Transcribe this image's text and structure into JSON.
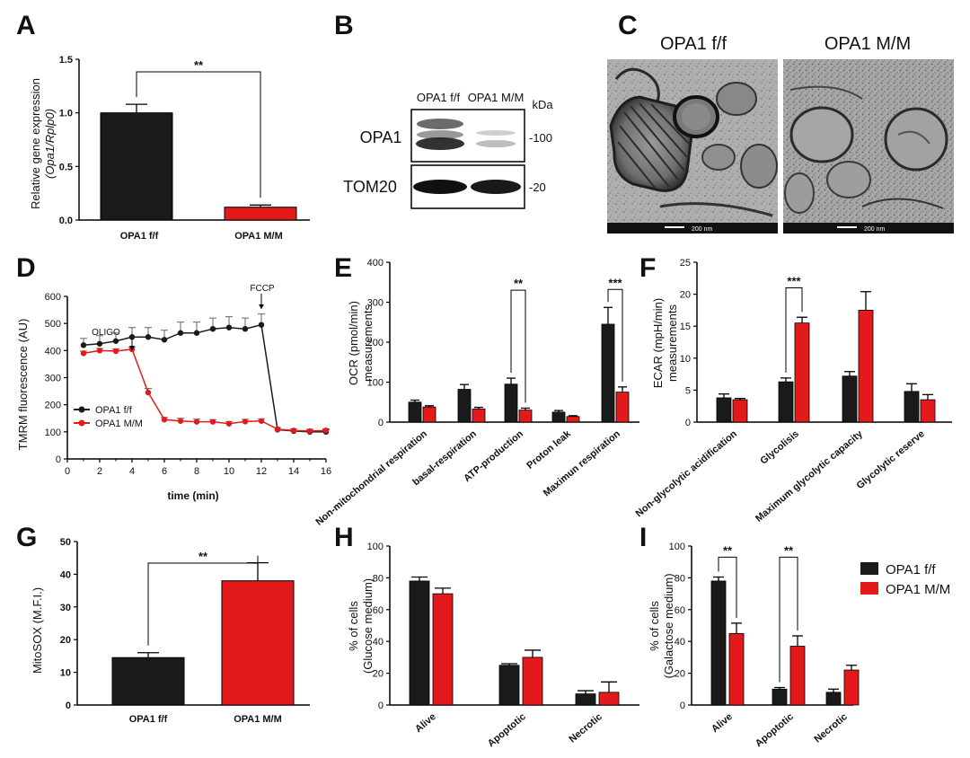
{
  "colors": {
    "ff": "#1a1a1a",
    "mm": "#e31a1c"
  },
  "panels": {
    "A": {
      "letter": "A",
      "ylabel1": "Relative gene expression",
      "ylabel2": "(Opa1/Rplp0)",
      "cat_ff": "OPA1 f/f",
      "cat_mm": "OPA1 M/M",
      "sig": "**"
    },
    "B": {
      "letter": "B",
      "col_ff": "OPA1 f/f",
      "col_mm": "OPA1 M/M",
      "kda": "kDa",
      "row1": "OPA1",
      "row2": "TOM20",
      "mw1": "-100",
      "mw2": "-20"
    },
    "C": {
      "letter": "C",
      "title_ff": "OPA1 f/f",
      "title_mm": "OPA1 M/M",
      "scale": "200 nm"
    },
    "D": {
      "letter": "D",
      "ylabel": "TMRM fluorescence (AU)",
      "xlabel": "time (min)",
      "oligo": "OLIGO",
      "fccp": "FCCP",
      "legend_ff": "OPA1 f/f",
      "legend_mm": "OPA1 M/M"
    },
    "E": {
      "letter": "E",
      "ylabel1": "OCR (pmol/min)",
      "ylabel2": "measurements"
    },
    "F": {
      "letter": "F",
      "ylabel1": "ECAR (mpH/min)",
      "ylabel2": "measurements"
    },
    "G": {
      "letter": "G",
      "ylabel": "MitoSOX (M.F.I.)",
      "cat_ff": "OPA1 f/f",
      "cat_mm": "OPA1 M/M",
      "sig": "**"
    },
    "H": {
      "letter": "H",
      "ylabel1": "% of cells",
      "ylabel2": "(Glucose medium)"
    },
    "I": {
      "letter": "I",
      "ylabel1": "% of cells",
      "ylabel2": "(Galactose medium)",
      "legend_ff": "OPA1 f/f",
      "legend_mm": "OPA1 M/M"
    }
  },
  "chart_data": [
    {
      "id": "A",
      "type": "bar",
      "categories": [
        "OPA1 f/f",
        "OPA1 M/M"
      ],
      "values": [
        1.0,
        0.12
      ],
      "errors": [
        0.08,
        0.02
      ],
      "ylim": [
        0,
        1.5
      ],
      "yticks": [
        "0.0",
        "0.5",
        "1.0",
        "1.5"
      ],
      "ylabel": "Relative gene expression (Opa1/Rplp0)",
      "annotations": [
        "**"
      ]
    },
    {
      "id": "D",
      "type": "line",
      "xlabel": "time (min)",
      "ylabel": "TMRM fluorescence (AU)",
      "xlim": [
        0,
        16
      ],
      "ylim": [
        0,
        600
      ],
      "xticks": [
        "0",
        "2",
        "4",
        "6",
        "8",
        "10",
        "12",
        "14",
        "16"
      ],
      "yticks": [
        "0",
        "100",
        "200",
        "300",
        "400",
        "500",
        "600"
      ],
      "x": [
        1,
        2,
        3,
        4,
        5,
        6,
        7,
        8,
        9,
        10,
        11,
        12,
        13,
        14,
        15,
        16
      ],
      "series": [
        {
          "name": "OPA1 f/f",
          "values": [
            420,
            425,
            435,
            450,
            450,
            440,
            465,
            465,
            480,
            485,
            480,
            495,
            108,
            103,
            100,
            100
          ],
          "errors": [
            25,
            30,
            30,
            35,
            35,
            35,
            40,
            40,
            40,
            40,
            40,
            40,
            8,
            8,
            8,
            8
          ]
        },
        {
          "name": "OPA1 M/M",
          "values": [
            390,
            400,
            398,
            405,
            245,
            145,
            140,
            137,
            137,
            130,
            138,
            140,
            110,
            105,
            103,
            105
          ],
          "errors": [
            8,
            8,
            8,
            8,
            15,
            8,
            10,
            10,
            8,
            8,
            8,
            8,
            6,
            6,
            6,
            6
          ]
        }
      ],
      "annotations": [
        "OLIGO",
        "FCCP"
      ]
    },
    {
      "id": "E",
      "type": "bar",
      "ylabel": "OCR (pmol/min) measurements",
      "ylim": [
        0,
        400
      ],
      "yticks": [
        "0",
        "100",
        "200",
        "300",
        "400"
      ],
      "categories": [
        "Non-mitochondrial respiration",
        "basal-respiration",
        "ATP-production",
        "Proton leak",
        "Maximun respiration"
      ],
      "series": [
        {
          "name": "OPA1 f/f",
          "values": [
            50,
            82,
            95,
            25,
            245
          ],
          "errors": [
            5,
            12,
            15,
            4,
            42
          ]
        },
        {
          "name": "OPA1 M/M",
          "values": [
            38,
            33,
            30,
            14,
            75
          ],
          "errors": [
            3,
            4,
            5,
            2,
            13
          ]
        }
      ],
      "annotations": [
        {
          "category": "ATP-production",
          "label": "**"
        },
        {
          "category": "Maximun respiration",
          "label": "***"
        }
      ]
    },
    {
      "id": "F",
      "type": "bar",
      "ylabel": "ECAR (mpH/min) measurements",
      "ylim": [
        0,
        25
      ],
      "yticks": [
        "0",
        "5",
        "10",
        "15",
        "20",
        "25"
      ],
      "categories": [
        "Non-glycolytic acidification",
        "Glycolisis",
        "Maximum glycolytic capacity",
        "Glycolytic reserve"
      ],
      "series": [
        {
          "name": "OPA1 f/f",
          "values": [
            3.8,
            6.3,
            7.2,
            4.8
          ],
          "errors": [
            0.6,
            0.6,
            0.7,
            1.2
          ]
        },
        {
          "name": "OPA1 M/M",
          "values": [
            3.5,
            15.5,
            17.5,
            3.5
          ],
          "errors": [
            0.2,
            0.9,
            2.9,
            0.8
          ]
        }
      ],
      "annotations": [
        {
          "category": "Glycolisis",
          "label": "***"
        }
      ]
    },
    {
      "id": "G",
      "type": "bar",
      "categories": [
        "OPA1 f/f",
        "OPA1 M/M"
      ],
      "values": [
        14.5,
        38
      ],
      "errors": [
        1.5,
        5.5
      ],
      "ylim": [
        0,
        50
      ],
      "yticks": [
        "0",
        "10",
        "20",
        "30",
        "40",
        "50"
      ],
      "ylabel": "MitoSOX (M.F.I.)",
      "annotations": [
        "**"
      ]
    },
    {
      "id": "H",
      "type": "bar",
      "ylabel": "% of cells (Glucose medium)",
      "ylim": [
        0,
        100
      ],
      "yticks": [
        "0",
        "20",
        "40",
        "60",
        "80",
        "100"
      ],
      "categories": [
        "Alive",
        "Apoptotic",
        "Necrotic"
      ],
      "series": [
        {
          "name": "OPA1 f/f",
          "values": [
            78,
            25,
            7
          ],
          "errors": [
            2.5,
            1,
            2
          ]
        },
        {
          "name": "OPA1 M/M",
          "values": [
            70,
            30,
            8
          ],
          "errors": [
            3.5,
            4.5,
            6.5
          ]
        }
      ]
    },
    {
      "id": "I",
      "type": "bar",
      "ylabel": "% of cells (Galactose medium)",
      "ylim": [
        0,
        100
      ],
      "yticks": [
        "0",
        "20",
        "40",
        "60",
        "80",
        "100"
      ],
      "categories": [
        "Alive",
        "Apoptotic",
        "Necrotic"
      ],
      "series": [
        {
          "name": "OPA1 f/f",
          "values": [
            78,
            10,
            8
          ],
          "errors": [
            2.5,
            1,
            2
          ]
        },
        {
          "name": "OPA1 M/M",
          "values": [
            45,
            37,
            22
          ],
          "errors": [
            6.5,
            6.5,
            3
          ]
        }
      ],
      "annotations": [
        {
          "category": "Alive",
          "label": "**"
        },
        {
          "category": "Apoptotic",
          "label": "**"
        }
      ],
      "legend": [
        "OPA1 f/f",
        "OPA1 M/M"
      ]
    }
  ]
}
